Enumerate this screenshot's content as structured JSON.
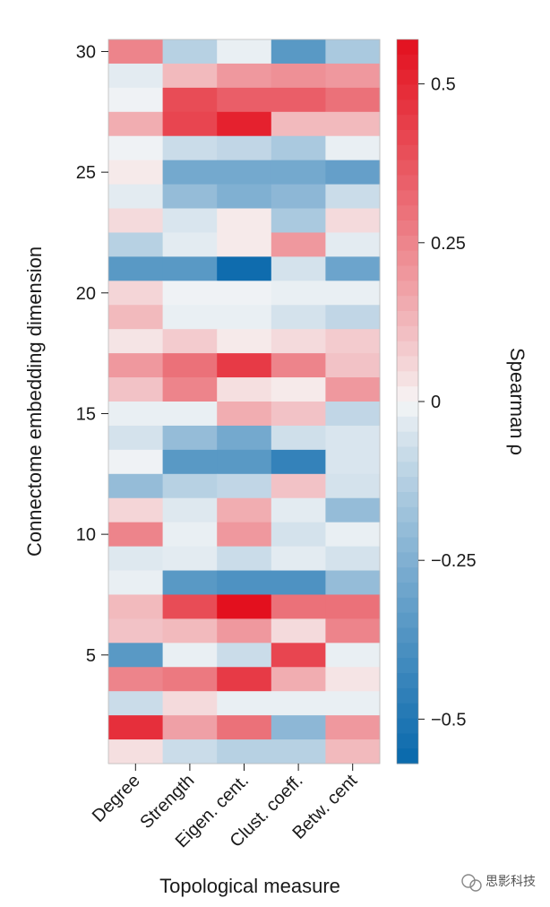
{
  "chart_data": {
    "type": "heatmap",
    "xlabel": "Topological measure",
    "ylabel": "Connectome embedding dimension",
    "categories": [
      "Degree",
      "Strength",
      "Eigen. cent.",
      "Clust. coeff.",
      "Betw. cent"
    ],
    "y_dims": [
      30,
      29,
      28,
      27,
      26,
      25,
      24,
      23,
      22,
      21,
      20,
      19,
      18,
      17,
      16,
      15,
      14,
      13,
      12,
      11,
      10,
      9,
      8,
      7,
      6,
      5,
      4,
      3,
      2,
      1
    ],
    "y_ticks": [
      30,
      25,
      20,
      15,
      10,
      5
    ],
    "values": [
      [
        0.25,
        -0.12,
        -0.02,
        -0.35,
        -0.15
      ],
      [
        -0.03,
        0.12,
        0.2,
        0.22,
        0.2
      ],
      [
        -0.01,
        0.4,
        0.35,
        0.35,
        0.3
      ],
      [
        0.15,
        0.42,
        0.52,
        0.12,
        0.12
      ],
      [
        -0.01,
        -0.08,
        -0.1,
        -0.15,
        -0.02
      ],
      [
        0.02,
        -0.28,
        -0.28,
        -0.28,
        -0.32
      ],
      [
        -0.03,
        -0.2,
        -0.25,
        -0.22,
        -0.08
      ],
      [
        0.05,
        -0.05,
        0.02,
        -0.15,
        0.05
      ],
      [
        -0.12,
        -0.03,
        0.02,
        0.2,
        -0.03
      ],
      [
        -0.35,
        -0.35,
        -0.55,
        -0.06,
        -0.3
      ],
      [
        0.06,
        -0.01,
        -0.01,
        -0.02,
        -0.02
      ],
      [
        0.12,
        -0.02,
        -0.02,
        -0.06,
        -0.1
      ],
      [
        0.03,
        0.08,
        0.02,
        0.05,
        0.08
      ],
      [
        0.2,
        0.3,
        0.45,
        0.25,
        0.1
      ],
      [
        0.1,
        0.25,
        0.04,
        0.02,
        0.2
      ],
      [
        -0.02,
        -0.02,
        0.15,
        0.1,
        -0.1
      ],
      [
        -0.06,
        -0.2,
        -0.28,
        -0.07,
        -0.05
      ],
      [
        -0.01,
        -0.35,
        -0.35,
        -0.45,
        -0.05
      ],
      [
        -0.2,
        -0.12,
        -0.1,
        0.1,
        -0.06
      ],
      [
        0.06,
        -0.04,
        0.15,
        -0.03,
        -0.2
      ],
      [
        0.25,
        -0.02,
        0.2,
        -0.06,
        -0.02
      ],
      [
        -0.04,
        -0.03,
        -0.08,
        -0.03,
        -0.06
      ],
      [
        -0.02,
        -0.35,
        -0.38,
        -0.38,
        -0.2
      ],
      [
        0.12,
        0.4,
        0.57,
        0.3,
        0.3
      ],
      [
        0.1,
        0.12,
        0.2,
        0.05,
        0.25
      ],
      [
        -0.35,
        -0.02,
        -0.08,
        0.42,
        -0.02
      ],
      [
        0.25,
        0.28,
        0.45,
        0.15,
        0.03
      ],
      [
        -0.08,
        0.05,
        -0.02,
        -0.02,
        -0.02
      ],
      [
        0.48,
        0.18,
        0.3,
        -0.22,
        0.2
      ],
      [
        0.04,
        -0.08,
        -0.12,
        -0.12,
        0.12
      ]
    ],
    "colorbar": {
      "label": "Spearman ρ",
      "min": -0.57,
      "max": 0.57,
      "ticks": [
        0.5,
        0.25,
        0,
        -0.25,
        -0.5
      ],
      "tick_labels": [
        "0.5",
        "0.25",
        "0",
        "−0.25",
        "−0.5"
      ],
      "colors": {
        "negative": "#0868ac",
        "neutral": "#f7f7f7",
        "positive": "#e3101e"
      }
    },
    "grid": false,
    "legend": "colorbar-right"
  },
  "watermark": {
    "text": "思影科技",
    "icon": "wechat-icon"
  }
}
